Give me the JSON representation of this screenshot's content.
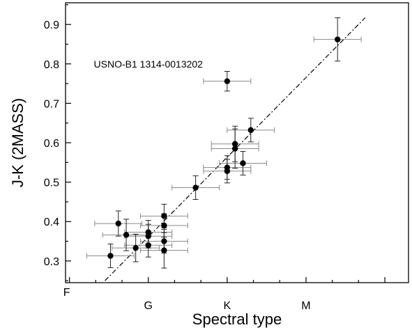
{
  "chart_data": {
    "type": "scatter",
    "xlabel": "Spectral type",
    "ylabel": "J-K (2MASS)",
    "xlim": [
      -0.05,
      4.3
    ],
    "ylim": [
      0.245,
      0.955
    ],
    "x_ticks": [
      {
        "value": 0,
        "label": "F"
      },
      {
        "value": 1,
        "label": "G"
      },
      {
        "value": 2,
        "label": "K"
      },
      {
        "value": 3,
        "label": "M"
      }
    ],
    "y_ticks": [
      {
        "value": 0.3,
        "label": "0.3"
      },
      {
        "value": 0.4,
        "label": "0.4"
      },
      {
        "value": 0.5,
        "label": "0.5"
      },
      {
        "value": 0.6,
        "label": "0.6"
      },
      {
        "value": 0.7,
        "label": "0.7"
      },
      {
        "value": 0.8,
        "label": "0.8"
      },
      {
        "value": 0.9,
        "label": "0.9"
      }
    ],
    "points": [
      {
        "x": 0.52,
        "y": 0.313,
        "xerr": 0.3,
        "yerr": 0.03
      },
      {
        "x": 0.62,
        "y": 0.395,
        "xerr": 0.3,
        "yerr": 0.032
      },
      {
        "x": 0.72,
        "y": 0.366,
        "xerr": 0.3,
        "yerr": 0.04
      },
      {
        "x": 0.84,
        "y": 0.333,
        "xerr": 0.3,
        "yerr": 0.035
      },
      {
        "x": 1.0,
        "y": 0.373,
        "xerr": 0.3,
        "yerr": 0.03
      },
      {
        "x": 1.0,
        "y": 0.363,
        "xerr": 0.3,
        "yerr": 0.03
      },
      {
        "x": 1.0,
        "y": 0.34,
        "xerr": 0.3,
        "yerr": 0.03
      },
      {
        "x": 1.2,
        "y": 0.414,
        "xerr": 0.3,
        "yerr": 0.03
      },
      {
        "x": 1.2,
        "y": 0.39,
        "xerr": 0.3,
        "yerr": 0.03
      },
      {
        "x": 1.2,
        "y": 0.35,
        "xerr": 0.3,
        "yerr": 0.03
      },
      {
        "x": 1.2,
        "y": 0.327,
        "xerr": 0.3,
        "yerr": 0.045
      },
      {
        "x": 1.6,
        "y": 0.486,
        "xerr": 0.3,
        "yerr": 0.03
      },
      {
        "x": 2.0,
        "y": 0.537,
        "xerr": 0.3,
        "yerr": 0.03
      },
      {
        "x": 2.0,
        "y": 0.528,
        "xerr": 0.3,
        "yerr": 0.03
      },
      {
        "x": 2.1,
        "y": 0.597,
        "xerr": 0.3,
        "yerr": 0.045
      },
      {
        "x": 2.1,
        "y": 0.585,
        "xerr": 0.3,
        "yerr": 0.05
      },
      {
        "x": 2.2,
        "y": 0.548,
        "xerr": 0.3,
        "yerr": 0.03
      },
      {
        "x": 2.3,
        "y": 0.632,
        "xerr": 0.3,
        "yerr": 0.03
      },
      {
        "x": 2.0,
        "y": 0.756,
        "xerr": 0.3,
        "yerr": 0.025
      },
      {
        "x": 3.4,
        "y": 0.862,
        "xerr": 0.3,
        "yerr": 0.055
      }
    ],
    "fit_line": {
      "x": [
        0.45,
        3.75
      ],
      "y": [
        0.25,
        0.917
      ]
    },
    "annotations": [
      {
        "text": "USNO-B1 1314-0013202",
        "x": 1.0,
        "y": 0.8
      }
    ]
  }
}
